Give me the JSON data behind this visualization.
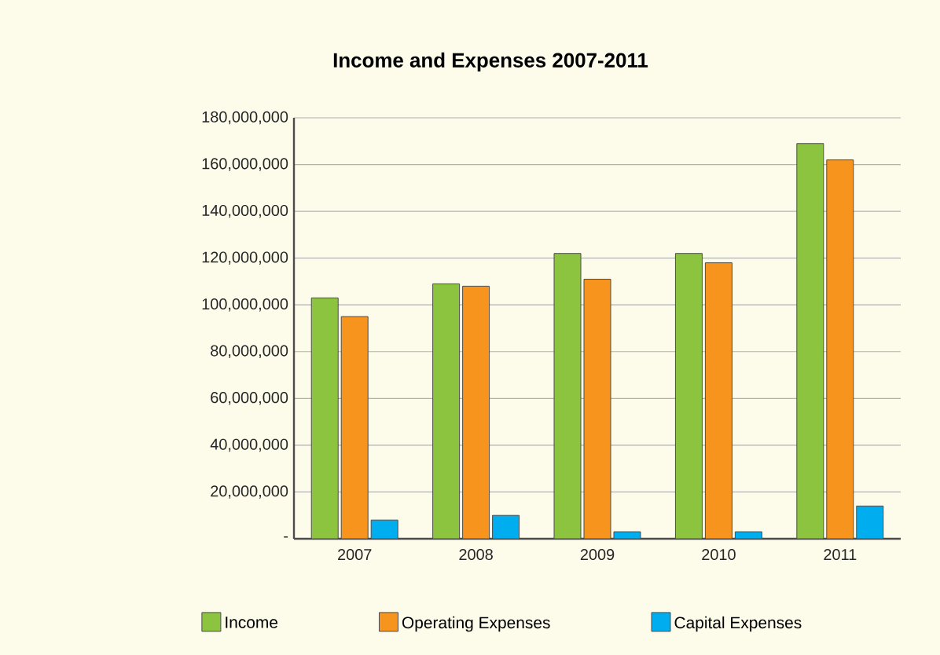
{
  "chart_data": {
    "type": "bar",
    "title": "Income and Expenses 2007-2011",
    "categories": [
      "2007",
      "2008",
      "2009",
      "2010",
      "2011"
    ],
    "series": [
      {
        "name": "Income",
        "color": "#8cc43f",
        "values": [
          103000000,
          109000000,
          122000000,
          122000000,
          169000000
        ]
      },
      {
        "name": "Operating Expenses",
        "color": "#f7941d",
        "values": [
          95000000,
          108000000,
          111000000,
          118000000,
          162000000
        ]
      },
      {
        "name": "Capital Expenses",
        "color": "#00aeef",
        "values": [
          8000000,
          10000000,
          3000000,
          3000000,
          14000000
        ]
      }
    ],
    "ylim": [
      0,
      180000000
    ],
    "yticks": [
      {
        "value": 0,
        "label": "-"
      },
      {
        "value": 20000000,
        "label": "20,000,000"
      },
      {
        "value": 40000000,
        "label": "40,000,000"
      },
      {
        "value": 60000000,
        "label": "60,000,000"
      },
      {
        "value": 80000000,
        "label": "80,000,000"
      },
      {
        "value": 100000000,
        "label": "100,000,000"
      },
      {
        "value": 120000000,
        "label": "120,000,000"
      },
      {
        "value": 140000000,
        "label": "140,000,000"
      },
      {
        "value": 160000000,
        "label": "160,000,000"
      },
      {
        "value": 180000000,
        "label": "180,000,000"
      }
    ],
    "grid": "y",
    "legend": "bottom"
  }
}
